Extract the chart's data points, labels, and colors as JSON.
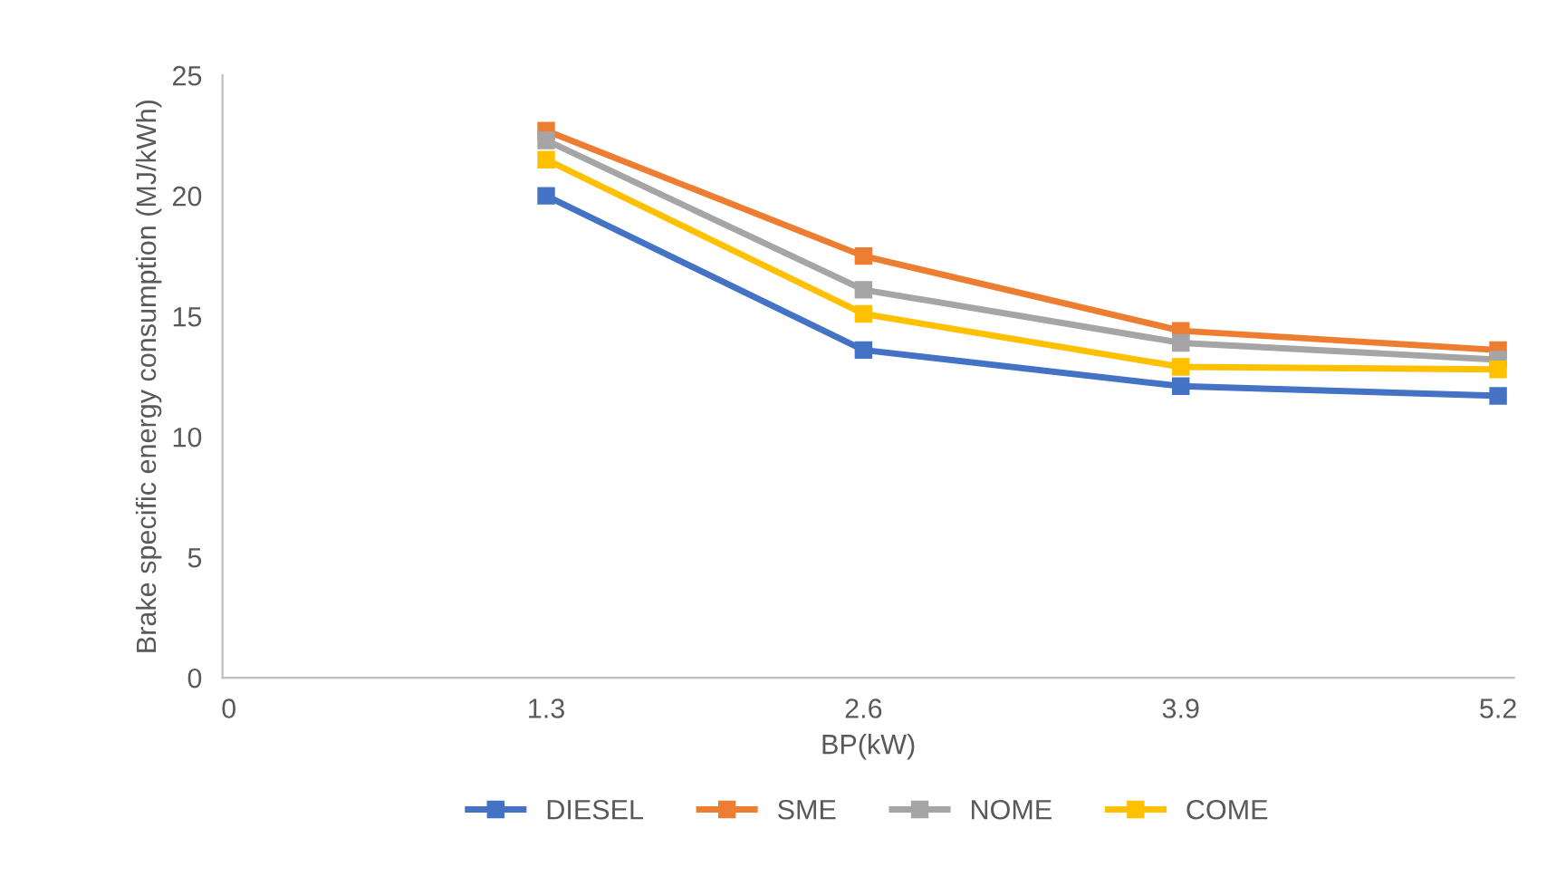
{
  "chart_data": {
    "type": "line",
    "xlabel": "BP(kW)",
    "ylabel": "Brake specific energy consumption (MJ/kWh)",
    "categories": [
      "0",
      "1.3",
      "2.6",
      "3.9",
      "5.2"
    ],
    "series": [
      {
        "name": "DIESEL",
        "color": "#4472c4",
        "values": [
          null,
          20.0,
          13.6,
          12.1,
          11.7
        ]
      },
      {
        "name": "SME",
        "color": "#ed7d31",
        "values": [
          null,
          22.7,
          17.5,
          14.4,
          13.6
        ]
      },
      {
        "name": "NOME",
        "color": "#a5a5a5",
        "values": [
          null,
          22.3,
          16.1,
          13.9,
          13.2
        ]
      },
      {
        "name": "COME",
        "color": "#ffc000",
        "values": [
          null,
          21.5,
          15.1,
          12.9,
          12.8
        ]
      }
    ],
    "ylim": [
      0,
      25
    ],
    "yticks": [
      0,
      5,
      10,
      15,
      20,
      25
    ],
    "grid": false,
    "legend": "bottom",
    "marker": "square",
    "line_style": "solid"
  }
}
